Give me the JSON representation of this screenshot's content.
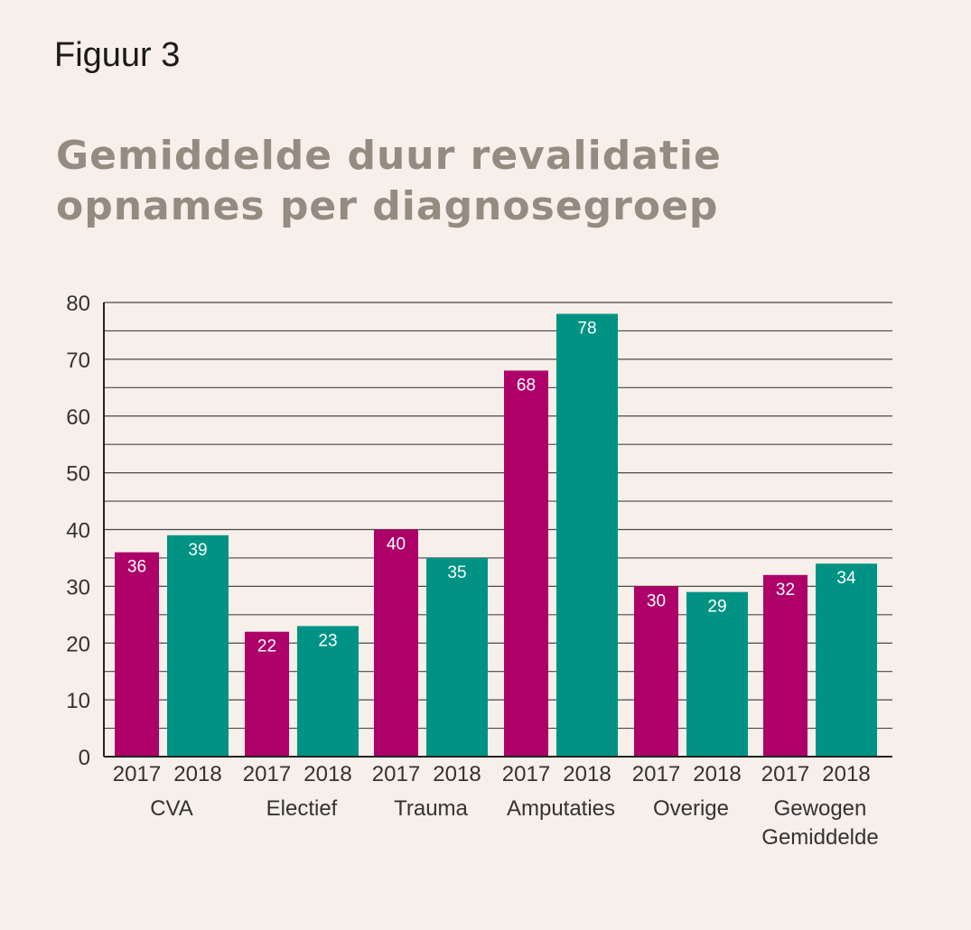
{
  "figure_label": "Figuur 3",
  "title_lines": [
    "Gemiddelde duur revalidatie",
    "opnames per diagnosegroep"
  ],
  "chart_data": {
    "type": "bar",
    "title": "Gemiddelde duur revalidatie opnames per diagnosegroep",
    "xlabel": "",
    "ylabel": "",
    "ylim": [
      0,
      80
    ],
    "yticks": [
      0,
      10,
      20,
      30,
      40,
      50,
      60,
      70,
      80
    ],
    "grid": true,
    "categories": [
      [
        "CVA"
      ],
      [
        "Electief"
      ],
      [
        "Trauma"
      ],
      [
        "Amputaties"
      ],
      [
        "Overige"
      ],
      [
        "Gewogen",
        "Gemiddelde"
      ]
    ],
    "series": [
      {
        "name": "2017",
        "color": "#ad0068",
        "values": [
          36,
          22,
          40,
          68,
          30,
          32
        ]
      },
      {
        "name": "2018",
        "color": "#009384",
        "values": [
          39,
          23,
          35,
          78,
          29,
          34
        ]
      }
    ]
  }
}
